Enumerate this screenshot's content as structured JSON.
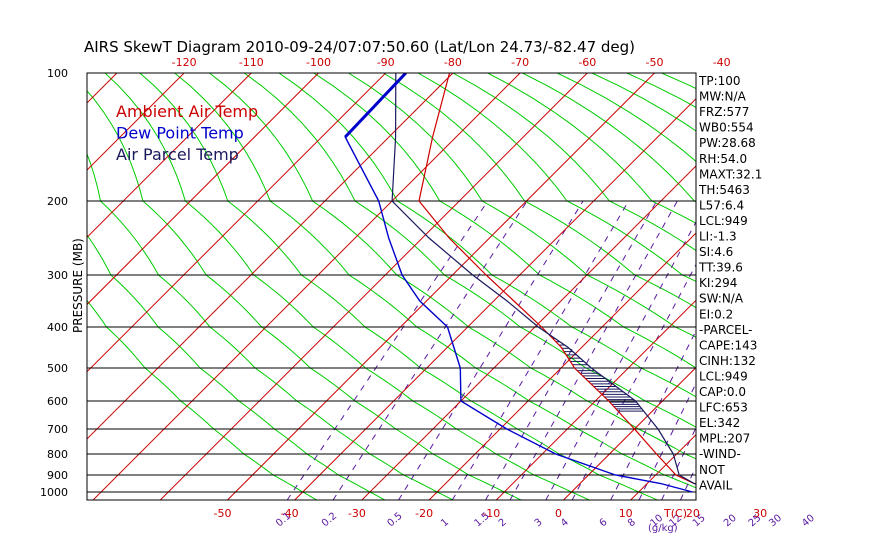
{
  "chart_data": {
    "type": "skewt",
    "title": "AIRS SkewT Diagram 2010-09-24/07:07:50.60 (Lat/Lon 24.73/-82.47 deg)",
    "ylabel": "PRESSURE (MB)",
    "pressure_ticks": [
      100,
      200,
      300,
      400,
      500,
      600,
      700,
      800,
      900,
      1000
    ],
    "temp_ticks_top": [
      -120,
      -110,
      -100,
      -90,
      -80,
      -70,
      -60,
      -50,
      -40
    ],
    "temp_ticks_bottom": [
      -50,
      -40,
      -30,
      -20,
      -10,
      0,
      10,
      20,
      30
    ],
    "temp_axis_label": "T(C)",
    "mixing_ratio_ticks": [
      "0.1",
      "0.2",
      "0.5",
      "1",
      "1.5",
      "2",
      "3",
      "4",
      "6",
      "8",
      "10",
      "12",
      "15",
      "20",
      "25",
      "30",
      "40"
    ],
    "mixing_ratio_label": "(g/kg)",
    "series": [
      {
        "name": "Ambient Air Temp",
        "color": "#cc0000",
        "points": [
          [
            100,
            -80.5
          ],
          [
            150,
            -73.5
          ],
          [
            200,
            -66
          ],
          [
            250,
            -56
          ],
          [
            300,
            -45
          ],
          [
            350,
            -37
          ],
          [
            400,
            -29
          ],
          [
            450,
            -23
          ],
          [
            500,
            -18
          ],
          [
            600,
            -8
          ],
          [
            700,
            0
          ],
          [
            800,
            7
          ],
          [
            900,
            13
          ],
          [
            950,
            17
          ],
          [
            1000,
            23
          ]
        ]
      },
      {
        "name": "Dew Point Temp",
        "color": "#0000cc",
        "points": [
          [
            100,
            -87
          ],
          [
            150,
            -86.5
          ],
          [
            200,
            -72
          ],
          [
            250,
            -65
          ],
          [
            300,
            -57.5
          ],
          [
            350,
            -51
          ],
          [
            400,
            -43
          ],
          [
            450,
            -39
          ],
          [
            500,
            -35
          ],
          [
            600,
            -30
          ],
          [
            700,
            -19
          ],
          [
            800,
            -8
          ],
          [
            900,
            4
          ],
          [
            950,
            12
          ],
          [
            1000,
            18
          ]
        ]
      },
      {
        "name": "Air Parcel Temp",
        "color": "#1a1a5e",
        "points": [
          [
            100,
            -88.5
          ],
          [
            150,
            -79
          ],
          [
            200,
            -70
          ],
          [
            250,
            -59
          ],
          [
            300,
            -47
          ],
          [
            350,
            -38
          ],
          [
            400,
            -29.5
          ],
          [
            450,
            -22
          ],
          [
            500,
            -15.5
          ],
          [
            600,
            -4
          ],
          [
            700,
            3.5
          ],
          [
            800,
            9.5
          ],
          [
            900,
            13.5
          ],
          [
            950,
            17
          ],
          [
            1000,
            22
          ]
        ]
      }
    ],
    "legend": [
      "Ambient Air Temp",
      "Dew Point Temp",
      "Air Parcel Temp"
    ],
    "legend_placement": "top-left",
    "grid": true
  },
  "indices": [
    "TP:100",
    "MW:N/A",
    "FRZ:577",
    "WB0:554",
    "PW:28.68",
    "RH:54.0",
    "MAXT:32.1",
    "TH:5463",
    "L57:6.4",
    "LCL:949",
    "LI:-1.3",
    "SI:4.6",
    "TT:39.6",
    "KI:294",
    "SW:N/A",
    "EI:0.2",
    "-PARCEL-",
    "CAPE:143",
    "CINH:132",
    "LCL:949",
    "CAP:0.0",
    "LFC:653",
    "EL:342",
    "MPL:207",
    "-WIND-",
    "NOT",
    "AVAIL"
  ],
  "colors": {
    "isotherm": "#cc0000",
    "dry_adiabat": "#00cc00",
    "mixing_ratio": "#5a1aa0",
    "isobar": "#000000"
  }
}
